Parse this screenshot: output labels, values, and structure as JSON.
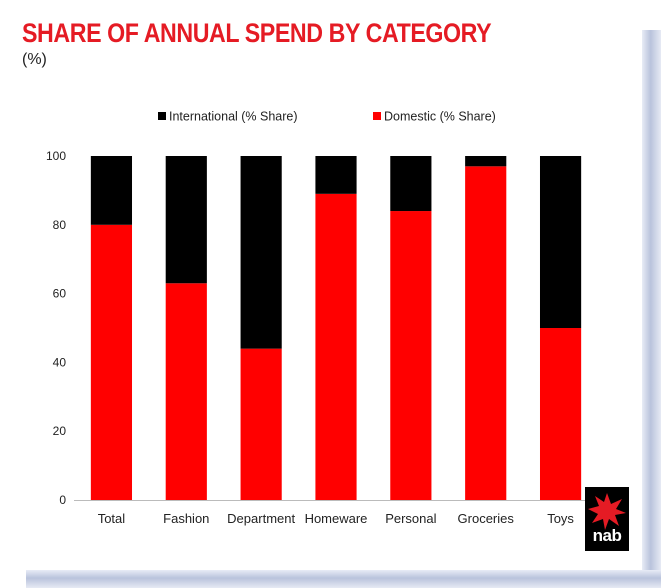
{
  "header": {
    "title": "SHARE OF ANNUAL SPEND BY CATEGORY",
    "subtitle": "(%)"
  },
  "brand": {
    "logo_text": "nab",
    "logo_icon": "red-star-icon"
  },
  "colors": {
    "international": "#000000",
    "domestic": "#ff0000",
    "title": "#e51b24"
  },
  "chart_data": {
    "type": "bar",
    "stacked": true,
    "categories": [
      "Total",
      "Fashion",
      "Department",
      "Homeware",
      "Personal",
      "Groceries",
      "Toys"
    ],
    "series": [
      {
        "name": "International (% Share)",
        "values": [
          20,
          37,
          56,
          11,
          16,
          3,
          50
        ]
      },
      {
        "name": "Domestic (% Share)",
        "values": [
          80,
          63,
          44,
          89,
          84,
          97,
          50
        ]
      }
    ],
    "stack_order": [
      "Domestic (% Share)",
      "International (% Share)"
    ],
    "ylim": [
      0,
      100
    ],
    "yticks": [
      0,
      20,
      40,
      60,
      80,
      100
    ],
    "title": "SHARE OF ANNUAL SPEND BY CATEGORY",
    "xlabel": "",
    "ylabel": "",
    "grid": false,
    "legend_position": "top"
  }
}
